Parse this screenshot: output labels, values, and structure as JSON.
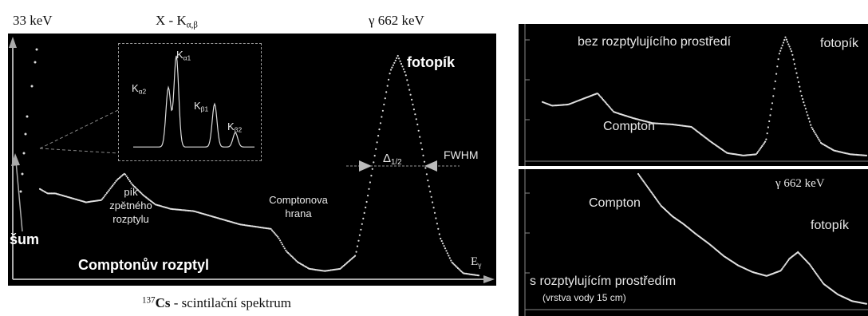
{
  "chart_data": [
    {
      "type": "line",
      "title": "¹³⁷Cs - scintilační spektrum",
      "xlabel": "Eγ",
      "ylabel": "",
      "top_labels": [
        "33 keV",
        "X - Kα,β",
        "γ 662 keV"
      ],
      "annotations": [
        "šum",
        "Comptonův rozptyl",
        "pík zpětného rozptylu",
        "Comptonova hrana",
        "fotopík",
        "Δ1/2",
        "FWHM"
      ],
      "inset": {
        "peaks": [
          "Kα2",
          "Kα1",
          "Kβ1",
          "Kβ2"
        ]
      },
      "series": [
        {
          "x": [
            40,
            50,
            60,
            80,
            100,
            120,
            140,
            150,
            160,
            175,
            190,
            210,
            240,
            270,
            300,
            320,
            340,
            350,
            360,
            375,
            390,
            410,
            430,
            450,
            465,
            480,
            495,
            505,
            515,
            530,
            545,
            560,
            575,
            590,
            610
          ],
          "values": [
            0.4,
            0.38,
            0.38,
            0.36,
            0.34,
            0.35,
            0.44,
            0.47,
            0.42,
            0.37,
            0.33,
            0.31,
            0.3,
            0.27,
            0.24,
            0.23,
            0.22,
            0.18,
            0.12,
            0.07,
            0.04,
            0.03,
            0.04,
            0.1,
            0.35,
            0.65,
            0.93,
            1.0,
            0.92,
            0.7,
            0.42,
            0.18,
            0.07,
            0.02,
            0.01
          ]
        }
      ]
    },
    {
      "type": "line",
      "annotations": [
        "bez rozptylujícího prostředí",
        "fotopík",
        "Compton"
      ],
      "series": [
        {
          "x": [
            0.0,
            0.03,
            0.08,
            0.12,
            0.17,
            0.22,
            0.28,
            0.34,
            0.4,
            0.46,
            0.52,
            0.57,
            0.62,
            0.66,
            0.69,
            0.71,
            0.73,
            0.75,
            0.77,
            0.8,
            0.83,
            0.86,
            0.9,
            0.95,
            1.0
          ],
          "values": [
            0.45,
            0.42,
            0.43,
            0.47,
            0.52,
            0.37,
            0.32,
            0.28,
            0.27,
            0.25,
            0.13,
            0.04,
            0.02,
            0.03,
            0.14,
            0.45,
            0.83,
            0.97,
            0.85,
            0.5,
            0.25,
            0.12,
            0.06,
            0.03,
            0.02
          ]
        }
      ]
    },
    {
      "type": "line",
      "annotations": [
        "γ 662 keV",
        "Compton",
        "fotopík",
        "s rozptylujícím prostředím",
        "(vrstva vody 15 cm)"
      ],
      "series": [
        {
          "x": [
            0.2,
            0.24,
            0.28,
            0.32,
            0.36,
            0.4,
            0.45,
            0.5,
            0.55,
            0.6,
            0.65,
            0.7,
            0.73,
            0.76,
            0.8,
            0.85,
            0.9,
            0.95,
            1.0
          ],
          "values": [
            1.0,
            0.88,
            0.76,
            0.68,
            0.62,
            0.55,
            0.47,
            0.38,
            0.31,
            0.26,
            0.23,
            0.27,
            0.36,
            0.41,
            0.32,
            0.17,
            0.09,
            0.04,
            0.02
          ]
        }
      ]
    }
  ]
}
